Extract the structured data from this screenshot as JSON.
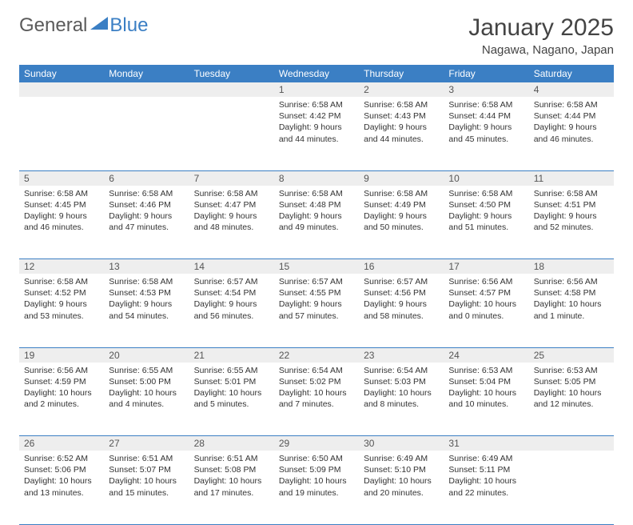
{
  "logo": {
    "text1": "General",
    "text2": "Blue"
  },
  "title": "January 2025",
  "location": "Nagawa, Nagano, Japan",
  "colors": {
    "header_bg": "#3b7fc4",
    "header_text": "#ffffff",
    "daynum_bg": "#eeeeee",
    "border": "#3b7fc4",
    "body_text": "#333333",
    "page_bg": "#ffffff"
  },
  "weekdays": [
    "Sunday",
    "Monday",
    "Tuesday",
    "Wednesday",
    "Thursday",
    "Friday",
    "Saturday"
  ],
  "weeks": [
    [
      {
        "n": "",
        "sunrise": "",
        "sunset": "",
        "daylight": ""
      },
      {
        "n": "",
        "sunrise": "",
        "sunset": "",
        "daylight": ""
      },
      {
        "n": "",
        "sunrise": "",
        "sunset": "",
        "daylight": ""
      },
      {
        "n": "1",
        "sunrise": "Sunrise: 6:58 AM",
        "sunset": "Sunset: 4:42 PM",
        "daylight": "Daylight: 9 hours and 44 minutes."
      },
      {
        "n": "2",
        "sunrise": "Sunrise: 6:58 AM",
        "sunset": "Sunset: 4:43 PM",
        "daylight": "Daylight: 9 hours and 44 minutes."
      },
      {
        "n": "3",
        "sunrise": "Sunrise: 6:58 AM",
        "sunset": "Sunset: 4:44 PM",
        "daylight": "Daylight: 9 hours and 45 minutes."
      },
      {
        "n": "4",
        "sunrise": "Sunrise: 6:58 AM",
        "sunset": "Sunset: 4:44 PM",
        "daylight": "Daylight: 9 hours and 46 minutes."
      }
    ],
    [
      {
        "n": "5",
        "sunrise": "Sunrise: 6:58 AM",
        "sunset": "Sunset: 4:45 PM",
        "daylight": "Daylight: 9 hours and 46 minutes."
      },
      {
        "n": "6",
        "sunrise": "Sunrise: 6:58 AM",
        "sunset": "Sunset: 4:46 PM",
        "daylight": "Daylight: 9 hours and 47 minutes."
      },
      {
        "n": "7",
        "sunrise": "Sunrise: 6:58 AM",
        "sunset": "Sunset: 4:47 PM",
        "daylight": "Daylight: 9 hours and 48 minutes."
      },
      {
        "n": "8",
        "sunrise": "Sunrise: 6:58 AM",
        "sunset": "Sunset: 4:48 PM",
        "daylight": "Daylight: 9 hours and 49 minutes."
      },
      {
        "n": "9",
        "sunrise": "Sunrise: 6:58 AM",
        "sunset": "Sunset: 4:49 PM",
        "daylight": "Daylight: 9 hours and 50 minutes."
      },
      {
        "n": "10",
        "sunrise": "Sunrise: 6:58 AM",
        "sunset": "Sunset: 4:50 PM",
        "daylight": "Daylight: 9 hours and 51 minutes."
      },
      {
        "n": "11",
        "sunrise": "Sunrise: 6:58 AM",
        "sunset": "Sunset: 4:51 PM",
        "daylight": "Daylight: 9 hours and 52 minutes."
      }
    ],
    [
      {
        "n": "12",
        "sunrise": "Sunrise: 6:58 AM",
        "sunset": "Sunset: 4:52 PM",
        "daylight": "Daylight: 9 hours and 53 minutes."
      },
      {
        "n": "13",
        "sunrise": "Sunrise: 6:58 AM",
        "sunset": "Sunset: 4:53 PM",
        "daylight": "Daylight: 9 hours and 54 minutes."
      },
      {
        "n": "14",
        "sunrise": "Sunrise: 6:57 AM",
        "sunset": "Sunset: 4:54 PM",
        "daylight": "Daylight: 9 hours and 56 minutes."
      },
      {
        "n": "15",
        "sunrise": "Sunrise: 6:57 AM",
        "sunset": "Sunset: 4:55 PM",
        "daylight": "Daylight: 9 hours and 57 minutes."
      },
      {
        "n": "16",
        "sunrise": "Sunrise: 6:57 AM",
        "sunset": "Sunset: 4:56 PM",
        "daylight": "Daylight: 9 hours and 58 minutes."
      },
      {
        "n": "17",
        "sunrise": "Sunrise: 6:56 AM",
        "sunset": "Sunset: 4:57 PM",
        "daylight": "Daylight: 10 hours and 0 minutes."
      },
      {
        "n": "18",
        "sunrise": "Sunrise: 6:56 AM",
        "sunset": "Sunset: 4:58 PM",
        "daylight": "Daylight: 10 hours and 1 minute."
      }
    ],
    [
      {
        "n": "19",
        "sunrise": "Sunrise: 6:56 AM",
        "sunset": "Sunset: 4:59 PM",
        "daylight": "Daylight: 10 hours and 2 minutes."
      },
      {
        "n": "20",
        "sunrise": "Sunrise: 6:55 AM",
        "sunset": "Sunset: 5:00 PM",
        "daylight": "Daylight: 10 hours and 4 minutes."
      },
      {
        "n": "21",
        "sunrise": "Sunrise: 6:55 AM",
        "sunset": "Sunset: 5:01 PM",
        "daylight": "Daylight: 10 hours and 5 minutes."
      },
      {
        "n": "22",
        "sunrise": "Sunrise: 6:54 AM",
        "sunset": "Sunset: 5:02 PM",
        "daylight": "Daylight: 10 hours and 7 minutes."
      },
      {
        "n": "23",
        "sunrise": "Sunrise: 6:54 AM",
        "sunset": "Sunset: 5:03 PM",
        "daylight": "Daylight: 10 hours and 8 minutes."
      },
      {
        "n": "24",
        "sunrise": "Sunrise: 6:53 AM",
        "sunset": "Sunset: 5:04 PM",
        "daylight": "Daylight: 10 hours and 10 minutes."
      },
      {
        "n": "25",
        "sunrise": "Sunrise: 6:53 AM",
        "sunset": "Sunset: 5:05 PM",
        "daylight": "Daylight: 10 hours and 12 minutes."
      }
    ],
    [
      {
        "n": "26",
        "sunrise": "Sunrise: 6:52 AM",
        "sunset": "Sunset: 5:06 PM",
        "daylight": "Daylight: 10 hours and 13 minutes."
      },
      {
        "n": "27",
        "sunrise": "Sunrise: 6:51 AM",
        "sunset": "Sunset: 5:07 PM",
        "daylight": "Daylight: 10 hours and 15 minutes."
      },
      {
        "n": "28",
        "sunrise": "Sunrise: 6:51 AM",
        "sunset": "Sunset: 5:08 PM",
        "daylight": "Daylight: 10 hours and 17 minutes."
      },
      {
        "n": "29",
        "sunrise": "Sunrise: 6:50 AM",
        "sunset": "Sunset: 5:09 PM",
        "daylight": "Daylight: 10 hours and 19 minutes."
      },
      {
        "n": "30",
        "sunrise": "Sunrise: 6:49 AM",
        "sunset": "Sunset: 5:10 PM",
        "daylight": "Daylight: 10 hours and 20 minutes."
      },
      {
        "n": "31",
        "sunrise": "Sunrise: 6:49 AM",
        "sunset": "Sunset: 5:11 PM",
        "daylight": "Daylight: 10 hours and 22 minutes."
      },
      {
        "n": "",
        "sunrise": "",
        "sunset": "",
        "daylight": ""
      }
    ]
  ]
}
